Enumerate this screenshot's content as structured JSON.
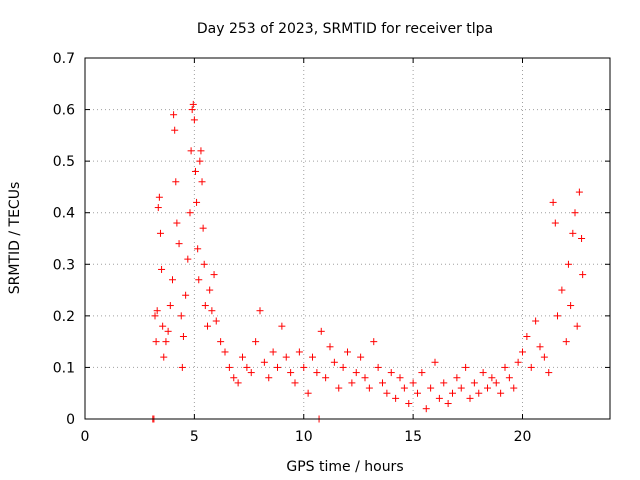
{
  "chart_data": {
    "type": "scatter",
    "title": "Day 253 of 2023, SRMTID for receiver tlpa",
    "xlabel": "GPS time / hours",
    "ylabel": "SRMTID / TECUs",
    "xlim": [
      0,
      24
    ],
    "ylim": [
      0,
      0.7
    ],
    "xticks": [
      0,
      5,
      10,
      15,
      20
    ],
    "yticks": [
      0,
      0.1,
      0.2,
      0.3,
      0.4,
      0.5,
      0.6,
      0.7
    ],
    "grid": true,
    "marker": "plus",
    "color": "#ff0000",
    "series": [
      {
        "name": "SRMTID tlpa",
        "points": [
          [
            3.1,
            0.0
          ],
          [
            3.15,
            0.0
          ],
          [
            3.2,
            0.2
          ],
          [
            3.25,
            0.15
          ],
          [
            3.3,
            0.21
          ],
          [
            3.35,
            0.41
          ],
          [
            3.4,
            0.43
          ],
          [
            3.45,
            0.36
          ],
          [
            3.5,
            0.29
          ],
          [
            3.55,
            0.18
          ],
          [
            3.6,
            0.12
          ],
          [
            3.7,
            0.15
          ],
          [
            3.8,
            0.17
          ],
          [
            3.9,
            0.22
          ],
          [
            4.0,
            0.27
          ],
          [
            4.05,
            0.59
          ],
          [
            4.1,
            0.56
          ],
          [
            4.15,
            0.46
          ],
          [
            4.2,
            0.38
          ],
          [
            4.3,
            0.34
          ],
          [
            4.4,
            0.2
          ],
          [
            4.45,
            0.1
          ],
          [
            4.5,
            0.16
          ],
          [
            4.6,
            0.24
          ],
          [
            4.7,
            0.31
          ],
          [
            4.8,
            0.4
          ],
          [
            4.85,
            0.52
          ],
          [
            4.9,
            0.6
          ],
          [
            4.95,
            0.61
          ],
          [
            5.0,
            0.58
          ],
          [
            5.05,
            0.48
          ],
          [
            5.1,
            0.42
          ],
          [
            5.15,
            0.33
          ],
          [
            5.2,
            0.27
          ],
          [
            5.25,
            0.5
          ],
          [
            5.3,
            0.52
          ],
          [
            5.35,
            0.46
          ],
          [
            5.4,
            0.37
          ],
          [
            5.45,
            0.3
          ],
          [
            5.5,
            0.22
          ],
          [
            5.6,
            0.18
          ],
          [
            5.7,
            0.25
          ],
          [
            5.8,
            0.21
          ],
          [
            5.9,
            0.28
          ],
          [
            6.0,
            0.19
          ],
          [
            6.2,
            0.15
          ],
          [
            6.4,
            0.13
          ],
          [
            6.6,
            0.1
          ],
          [
            6.8,
            0.08
          ],
          [
            7.0,
            0.07
          ],
          [
            7.2,
            0.12
          ],
          [
            7.4,
            0.1
          ],
          [
            7.6,
            0.09
          ],
          [
            7.8,
            0.15
          ],
          [
            8.0,
            0.21
          ],
          [
            8.2,
            0.11
          ],
          [
            8.4,
            0.08
          ],
          [
            8.6,
            0.13
          ],
          [
            8.8,
            0.1
          ],
          [
            9.0,
            0.18
          ],
          [
            9.2,
            0.12
          ],
          [
            9.4,
            0.09
          ],
          [
            9.6,
            0.07
          ],
          [
            9.8,
            0.13
          ],
          [
            10.0,
            0.1
          ],
          [
            10.2,
            0.05
          ],
          [
            10.4,
            0.12
          ],
          [
            10.6,
            0.09
          ],
          [
            10.7,
            0.0
          ],
          [
            10.8,
            0.17
          ],
          [
            11.0,
            0.08
          ],
          [
            11.2,
            0.14
          ],
          [
            11.4,
            0.11
          ],
          [
            11.6,
            0.06
          ],
          [
            11.8,
            0.1
          ],
          [
            12.0,
            0.13
          ],
          [
            12.2,
            0.07
          ],
          [
            12.4,
            0.09
          ],
          [
            12.6,
            0.12
          ],
          [
            12.8,
            0.08
          ],
          [
            13.0,
            0.06
          ],
          [
            13.2,
            0.15
          ],
          [
            13.4,
            0.1
          ],
          [
            13.6,
            0.07
          ],
          [
            13.8,
            0.05
          ],
          [
            14.0,
            0.09
          ],
          [
            14.2,
            0.04
          ],
          [
            14.4,
            0.08
          ],
          [
            14.6,
            0.06
          ],
          [
            14.8,
            0.03
          ],
          [
            15.0,
            0.07
          ],
          [
            15.2,
            0.05
          ],
          [
            15.4,
            0.09
          ],
          [
            15.6,
            0.02
          ],
          [
            15.8,
            0.06
          ],
          [
            16.0,
            0.11
          ],
          [
            16.2,
            0.04
          ],
          [
            16.4,
            0.07
          ],
          [
            16.6,
            0.03
          ],
          [
            16.8,
            0.05
          ],
          [
            17.0,
            0.08
          ],
          [
            17.2,
            0.06
          ],
          [
            17.4,
            0.1
          ],
          [
            17.6,
            0.04
          ],
          [
            17.8,
            0.07
          ],
          [
            18.0,
            0.05
          ],
          [
            18.2,
            0.09
          ],
          [
            18.4,
            0.06
          ],
          [
            18.6,
            0.08
          ],
          [
            18.8,
            0.07
          ],
          [
            19.0,
            0.05
          ],
          [
            19.2,
            0.1
          ],
          [
            19.4,
            0.08
          ],
          [
            19.6,
            0.06
          ],
          [
            19.8,
            0.11
          ],
          [
            20.0,
            0.13
          ],
          [
            20.2,
            0.16
          ],
          [
            20.4,
            0.1
          ],
          [
            20.6,
            0.19
          ],
          [
            20.8,
            0.14
          ],
          [
            21.0,
            0.12
          ],
          [
            21.2,
            0.09
          ],
          [
            21.4,
            0.42
          ],
          [
            21.5,
            0.38
          ],
          [
            21.6,
            0.2
          ],
          [
            21.8,
            0.25
          ],
          [
            22.0,
            0.15
          ],
          [
            22.1,
            0.3
          ],
          [
            22.2,
            0.22
          ],
          [
            22.3,
            0.36
          ],
          [
            22.4,
            0.4
          ],
          [
            22.5,
            0.18
          ],
          [
            22.6,
            0.44
          ],
          [
            22.7,
            0.35
          ],
          [
            22.75,
            0.28
          ]
        ]
      }
    ]
  }
}
